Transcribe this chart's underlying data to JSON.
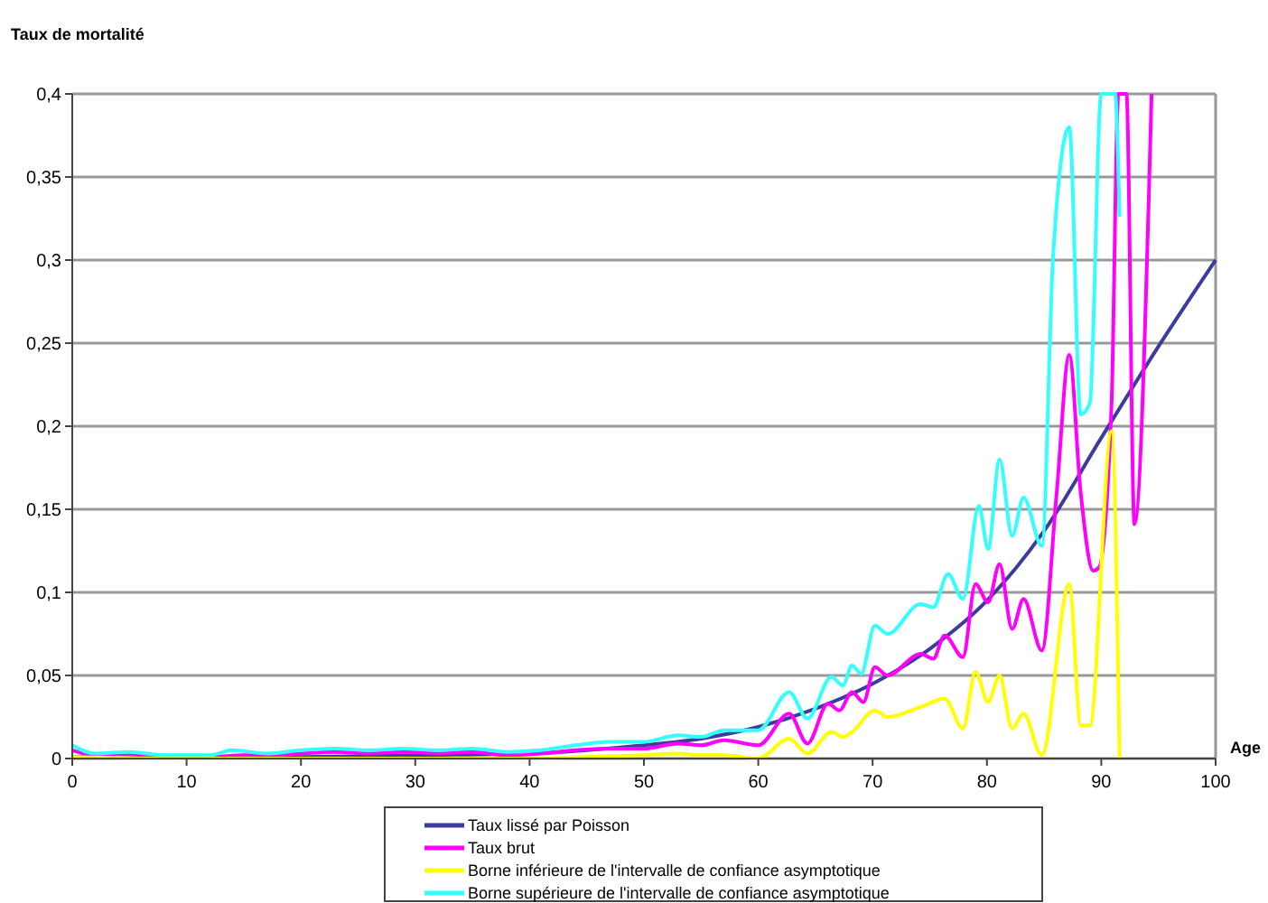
{
  "chart_data": {
    "type": "line",
    "ylabel": "Taux de mortalité",
    "xlabel": "Age",
    "xlim": [
      0,
      100
    ],
    "xticks": [
      0,
      10,
      20,
      30,
      40,
      50,
      60,
      70,
      80,
      90,
      100
    ],
    "ylim": [
      0,
      0.4
    ],
    "yticks": [
      {
        "value": 0,
        "label": "0"
      },
      {
        "value": 0.05,
        "label": "0,05"
      },
      {
        "value": 0.1,
        "label": "0,1"
      },
      {
        "value": 0.15,
        "label": "0,15"
      },
      {
        "value": 0.2,
        "label": "0,2"
      },
      {
        "value": 0.25,
        "label": "0,25"
      },
      {
        "value": 0.3,
        "label": "0,3"
      },
      {
        "value": 0.35,
        "label": "0,35"
      },
      {
        "value": 0.4,
        "label": "0,4"
      }
    ],
    "grid": "y",
    "legend": "bottom",
    "series": [
      {
        "name": "Taux lissé par Poisson",
        "color": "#3c3c9c",
        "x": [
          0,
          10,
          20,
          30,
          40,
          45,
          50,
          55,
          60,
          65,
          70,
          75,
          80,
          85,
          90,
          95,
          100
        ],
        "values": [
          0.001,
          0.001,
          0.001,
          0.002,
          0.003,
          0.005,
          0.008,
          0.012,
          0.019,
          0.03,
          0.045,
          0.066,
          0.095,
          0.137,
          0.193,
          0.248,
          0.3
        ]
      },
      {
        "name": "Taux brut",
        "color": "#ff00ff",
        "x": [
          0,
          2,
          5,
          8,
          12,
          15,
          18,
          20,
          23,
          26,
          29,
          32,
          35,
          38,
          41,
          44,
          47,
          50,
          53,
          55,
          57,
          60,
          62.7,
          64.3,
          66.1,
          67.1,
          68.2,
          69.2,
          70.2,
          71.3,
          74.2,
          75.3,
          76.3,
          77.9,
          79,
          80.1,
          81.1,
          82.2,
          83.2,
          84.8,
          86.1,
          87.2,
          88.2,
          89.3,
          89.8,
          90.9,
          91.5,
          92.2,
          92.9,
          94.4
        ],
        "values": [
          0.005,
          0.002,
          0.003,
          0.001,
          0.001,
          0.002,
          0.002,
          0.003,
          0.004,
          0.003,
          0.004,
          0.003,
          0.004,
          0.002,
          0.003,
          0.005,
          0.006,
          0.006,
          0.009,
          0.008,
          0.011,
          0.008,
          0.027,
          0.009,
          0.033,
          0.029,
          0.04,
          0.034,
          0.055,
          0.05,
          0.063,
          0.06,
          0.074,
          0.061,
          0.105,
          0.094,
          0.117,
          0.078,
          0.096,
          0.065,
          0.16,
          0.243,
          0.16,
          0.113,
          0.115,
          0.214,
          0.4,
          0.4,
          0.141,
          0.4
        ]
      },
      {
        "name": "Borne inférieure de l'intervalle de confiance asymptotique",
        "color": "#ffff00",
        "x": [
          0,
          10,
          20,
          30,
          40,
          45,
          50,
          53,
          55,
          57,
          60,
          62.7,
          64.3,
          66.4,
          67.4,
          68.2,
          70.2,
          71.3,
          74.2,
          76.3,
          77.9,
          79,
          80.1,
          81.1,
          82.2,
          83.2,
          84.8,
          87.2,
          88.2,
          89,
          90.9,
          91.6
        ],
        "values": [
          0.001,
          0,
          0,
          0,
          0,
          0.001,
          0.002,
          0.003,
          0.002,
          0.002,
          0,
          0.012,
          0.003,
          0.016,
          0.013,
          0.016,
          0.029,
          0.025,
          0.031,
          0.036,
          0.018,
          0.052,
          0.034,
          0.05,
          0.018,
          0.027,
          0.002,
          0.105,
          0.02,
          0.02,
          0.197,
          0
        ]
      },
      {
        "name": "Borne supérieure de l'intervalle de confiance asymptotique",
        "color": "#33ffff",
        "x": [
          0,
          2,
          5,
          8,
          12,
          14,
          17,
          20,
          23,
          26,
          29,
          32,
          35,
          38,
          41,
          44,
          47,
          50,
          53,
          55,
          57,
          60,
          62.7,
          64.3,
          66.4,
          67.4,
          68.2,
          69,
          70.2,
          71.3,
          74.2,
          75.3,
          76.6,
          77.9,
          79.3,
          80.1,
          81.1,
          82.2,
          83.2,
          84.8,
          85.8,
          87.2,
          88.2,
          89,
          90,
          91.2,
          91.6
        ],
        "values": [
          0.008,
          0.003,
          0.004,
          0.002,
          0.002,
          0.005,
          0.003,
          0.005,
          0.006,
          0.005,
          0.006,
          0.005,
          0.006,
          0.004,
          0.005,
          0.008,
          0.01,
          0.01,
          0.014,
          0.013,
          0.017,
          0.017,
          0.04,
          0.024,
          0.049,
          0.044,
          0.056,
          0.051,
          0.08,
          0.075,
          0.093,
          0.091,
          0.111,
          0.096,
          0.152,
          0.126,
          0.18,
          0.134,
          0.157,
          0.128,
          0.304,
          0.38,
          0.207,
          0.214,
          0.4,
          0.4,
          0.326
        ]
      }
    ]
  }
}
